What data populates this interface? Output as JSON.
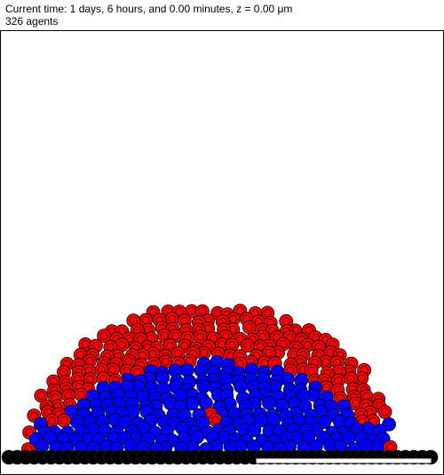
{
  "header": {
    "time_line": "Current time: 1 days, 6 hours, and 0.00 minutes, z = 0.00 μm",
    "agents_line": "326 agents"
  },
  "colors": {
    "red_cell": "#ff0000",
    "blue_cell": "#0000ff",
    "substrate": "#000000",
    "background": "#ffffff"
  },
  "scale_bar": {
    "label": ""
  }
}
